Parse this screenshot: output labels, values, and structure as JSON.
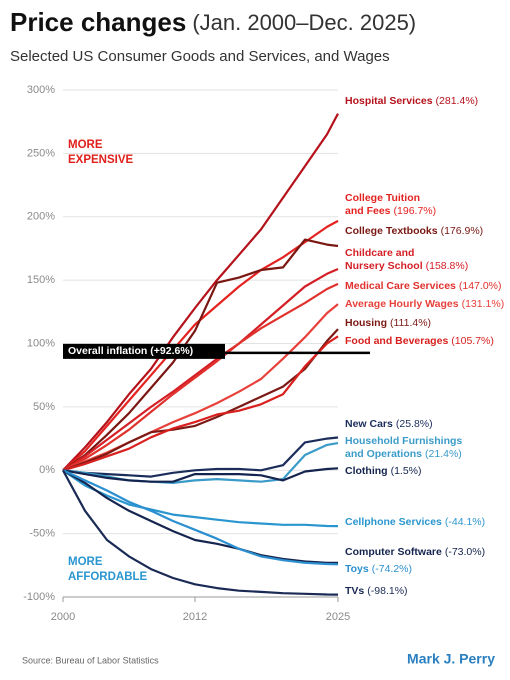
{
  "chart_data": {
    "type": "line",
    "title": "Price changes",
    "title_note": "(Jan. 2000–Dec. 2025)",
    "subtitle": "Selected US Consumer Goods and Services, and Wages",
    "source": "Source:  Bureau of Labor Statistics",
    "author": "Mark J. Perry",
    "x": [
      2000,
      2002,
      2004,
      2006,
      2008,
      2010,
      2012,
      2014,
      2016,
      2018,
      2020,
      2022,
      2024,
      2025
    ],
    "xlim": [
      2000,
      2025
    ],
    "xticks": [
      2000,
      2012,
      2025
    ],
    "ylim": [
      -100,
      300
    ],
    "yticks": [
      {
        "value": -100,
        "label": "-100%"
      },
      {
        "value": -50,
        "label": "-50%"
      },
      {
        "value": 0,
        "label": "0%"
      },
      {
        "value": 50,
        "label": "50%"
      },
      {
        "value": 100,
        "label": "100%"
      },
      {
        "value": 150,
        "label": "150%"
      },
      {
        "value": 200,
        "label": "200%"
      },
      {
        "value": 250,
        "label": "250%"
      },
      {
        "value": 300,
        "label": "300%"
      }
    ],
    "grid": true,
    "reference": {
      "label": "Overall inflation (+92.6%)",
      "value": 92.6,
      "color": "#000000"
    },
    "annotations": [
      {
        "text": "MORE EXPENSIVE",
        "color": "#e0201b"
      },
      {
        "text": "MORE AFFORDABLE",
        "color": "#2a96cf"
      }
    ],
    "series": [
      {
        "name": "Hospital Services",
        "color": "#b5121b",
        "values": [
          0,
          18,
          38,
          60,
          80,
          105,
          128,
          150,
          170,
          190,
          215,
          240,
          265,
          281.4
        ],
        "value_labels": [
          null,
          null,
          null,
          null,
          null,
          null,
          null,
          null,
          null,
          null,
          null,
          null,
          null,
          "(281.4%)"
        ]
      },
      {
        "name": "College Tuition and Fees",
        "color": "#e42320",
        "values": [
          0,
          15,
          35,
          55,
          75,
          95,
          115,
          130,
          145,
          158,
          168,
          180,
          192,
          196.7
        ],
        "value_labels": [
          null,
          null,
          null,
          null,
          null,
          null,
          null,
          null,
          null,
          null,
          null,
          null,
          null,
          "(196.7%)"
        ]
      },
      {
        "name": "College Textbooks",
        "color": "#7a1712",
        "values": [
          0,
          12,
          28,
          45,
          65,
          85,
          110,
          148,
          152,
          158,
          160,
          182,
          178,
          176.9
        ],
        "value_labels": [
          null,
          null,
          null,
          null,
          null,
          null,
          null,
          null,
          null,
          null,
          null,
          null,
          null,
          "(176.9%)"
        ]
      },
      {
        "name": "Childcare and Nursery School",
        "color": "#d51f26",
        "values": [
          0,
          11,
          24,
          37,
          50,
          62,
          75,
          88,
          100,
          115,
          130,
          145,
          155,
          158.8
        ],
        "value_labels": [
          null,
          null,
          null,
          null,
          null,
          null,
          null,
          null,
          null,
          null,
          null,
          null,
          null,
          "(158.8%)"
        ]
      },
      {
        "name": "Medical Care Services",
        "color": "#e0312c",
        "values": [
          0,
          9,
          20,
          32,
          46,
          60,
          73,
          86,
          100,
          112,
          122,
          132,
          143,
          147
        ],
        "value_labels": [
          null,
          null,
          null,
          null,
          null,
          null,
          null,
          null,
          null,
          null,
          null,
          null,
          null,
          "(147.0%)"
        ]
      },
      {
        "name": "Average Hourly Wages",
        "color": "#e8403a",
        "values": [
          0,
          7,
          14,
          22,
          30,
          38,
          45,
          53,
          62,
          72,
          88,
          105,
          124,
          131.1
        ],
        "value_labels": [
          null,
          null,
          null,
          null,
          null,
          null,
          null,
          null,
          null,
          null,
          null,
          null,
          null,
          "(131.1%)"
        ]
      },
      {
        "name": "Housing",
        "color": "#7b1a14",
        "values": [
          0,
          6,
          13,
          22,
          30,
          32,
          35,
          42,
          50,
          58,
          66,
          80,
          102,
          111.4
        ],
        "value_labels": [
          null,
          null,
          null,
          null,
          null,
          null,
          null,
          null,
          null,
          null,
          null,
          null,
          null,
          "(111.4%)"
        ]
      },
      {
        "name": "Food and Beverages",
        "color": "#d8201e",
        "values": [
          0,
          5,
          11,
          17,
          26,
          33,
          38,
          44,
          47,
          52,
          60,
          82,
          100,
          105.7
        ],
        "value_labels": [
          null,
          null,
          null,
          null,
          null,
          null,
          null,
          null,
          null,
          null,
          null,
          null,
          null,
          "(105.7%)"
        ]
      },
      {
        "name": "New Cars",
        "color": "#1b2d5b",
        "values": [
          0,
          -2,
          -3,
          -4,
          -5,
          -2,
          0,
          1,
          1,
          0,
          4,
          22,
          25,
          25.8
        ],
        "value_labels": [
          null,
          null,
          null,
          null,
          null,
          null,
          null,
          null,
          null,
          null,
          null,
          null,
          null,
          "(25.8%)"
        ]
      },
      {
        "name": "Household Furnishings and Operations",
        "color": "#3a9bc9",
        "values": [
          0,
          -2,
          -5,
          -8,
          -9,
          -10,
          -8,
          -7,
          -8,
          -9,
          -7,
          12,
          20,
          21.4
        ],
        "value_labels": [
          null,
          null,
          null,
          null,
          null,
          null,
          null,
          null,
          null,
          null,
          null,
          null,
          null,
          "(21.4%)"
        ]
      },
      {
        "name": "Clothing",
        "color": "#14244f",
        "values": [
          0,
          -3,
          -6,
          -8,
          -9,
          -9,
          -3,
          -3,
          -3,
          -4,
          -8,
          -1,
          1,
          1.5
        ],
        "value_labels": [
          null,
          null,
          null,
          null,
          null,
          null,
          null,
          null,
          null,
          null,
          null,
          null,
          null,
          "(1.5%)"
        ]
      },
      {
        "name": "Cellphone Services",
        "color": "#2a96cf",
        "values": [
          0,
          -12,
          -20,
          -27,
          -31,
          -35,
          -37,
          -39,
          -41,
          -42,
          -43,
          -43,
          -44,
          -44.1
        ],
        "value_labels": [
          null,
          null,
          null,
          null,
          null,
          null,
          null,
          null,
          null,
          null,
          null,
          null,
          null,
          "(-44.1%)"
        ]
      },
      {
        "name": "Computer Software",
        "color": "#15254f",
        "values": [
          0,
          -10,
          -22,
          -32,
          -40,
          -48,
          -55,
          -58,
          -62,
          -67,
          -70,
          -72,
          -73,
          -73
        ],
        "value_labels": [
          null,
          null,
          null,
          null,
          null,
          null,
          null,
          null,
          null,
          null,
          null,
          null,
          null,
          "(-73.0%)"
        ]
      },
      {
        "name": "Toys",
        "color": "#2b8fd0",
        "values": [
          0,
          -8,
          -16,
          -25,
          -32,
          -40,
          -47,
          -54,
          -62,
          -68,
          -71,
          -73,
          -74,
          -74.2
        ],
        "value_labels": [
          null,
          null,
          null,
          null,
          null,
          null,
          null,
          null,
          null,
          null,
          null,
          null,
          null,
          "(-74.2%)"
        ]
      },
      {
        "name": "TVs",
        "color": "#1a2a55",
        "values": [
          0,
          -32,
          -55,
          -68,
          -78,
          -85,
          -90,
          -93,
          -95,
          -96,
          -97,
          -97.5,
          -98,
          -98.1
        ],
        "value_labels": [
          null,
          null,
          null,
          null,
          null,
          null,
          null,
          null,
          null,
          null,
          null,
          null,
          null,
          "(-98.1%)"
        ]
      }
    ]
  }
}
